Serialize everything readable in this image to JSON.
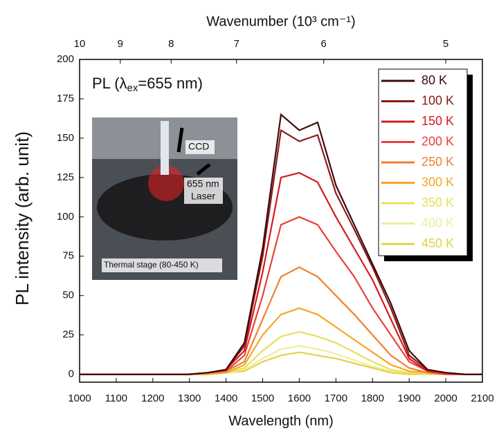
{
  "chart_data": {
    "type": "line",
    "x_label": "Wavelength (nm)",
    "y_label": "PL intensity (arb. unit)",
    "top_axis_label": "Wavenumber (10³ cm⁻¹)",
    "annotation": {
      "prefix": "PL (λ",
      "subscript": "ex",
      "suffix": "=655 nm)"
    },
    "inset": {
      "ccd": "CCD",
      "laser_line1": "655 nm",
      "laser_line2": "Laser",
      "stage": "Thermal stage (80-450 K)"
    },
    "xlim": [
      1000,
      2100
    ],
    "ylim": [
      -5,
      200
    ],
    "xticks": [
      1000,
      1100,
      1200,
      1300,
      1400,
      1500,
      1600,
      1700,
      1800,
      1900,
      2000,
      2100
    ],
    "yticks": [
      0,
      25,
      50,
      75,
      100,
      125,
      150,
      175,
      200
    ],
    "top_ticks": [
      10,
      9,
      8,
      7,
      6,
      5
    ],
    "x": [
      1000,
      1050,
      1100,
      1150,
      1200,
      1250,
      1300,
      1350,
      1400,
      1450,
      1500,
      1550,
      1600,
      1650,
      1700,
      1750,
      1800,
      1850,
      1900,
      1950,
      2000,
      2050,
      2100
    ],
    "series": [
      {
        "name": "80 K",
        "color": "#3d0a0a",
        "values": [
          0,
          0,
          0,
          0,
          0,
          0,
          0,
          1,
          3,
          20,
          80,
          165,
          155,
          160,
          120,
          95,
          70,
          45,
          15,
          3,
          1,
          0,
          0
        ]
      },
      {
        "name": "100 K",
        "color": "#8b1a1a",
        "values": [
          0,
          0,
          0,
          0,
          0,
          0,
          0,
          1,
          3,
          18,
          75,
          155,
          148,
          152,
          115,
          92,
          68,
          42,
          12,
          3,
          1,
          0,
          0
        ]
      },
      {
        "name": "150 K",
        "color": "#d7191c",
        "values": [
          0,
          0,
          0,
          0,
          0,
          0,
          0,
          1,
          3,
          15,
          65,
          125,
          128,
          122,
          100,
          80,
          60,
          35,
          10,
          2,
          1,
          0,
          0
        ]
      },
      {
        "name": "200 K",
        "color": "#e8403a",
        "values": [
          0,
          0,
          0,
          0,
          0,
          0,
          0,
          1,
          2,
          12,
          50,
          95,
          100,
          95,
          78,
          62,
          42,
          25,
          8,
          2,
          0,
          0,
          0
        ]
      },
      {
        "name": "250 K",
        "color": "#f07f2a",
        "values": [
          0,
          0,
          0,
          0,
          0,
          0,
          0,
          1,
          2,
          8,
          35,
          62,
          68,
          62,
          50,
          38,
          25,
          12,
          4,
          1,
          0,
          0,
          0
        ]
      },
      {
        "name": "300 K",
        "color": "#f5a623",
        "values": [
          0,
          0,
          0,
          0,
          0,
          0,
          0,
          0,
          1,
          6,
          25,
          38,
          42,
          38,
          30,
          22,
          14,
          6,
          2,
          1,
          0,
          0,
          0
        ]
      },
      {
        "name": "350 K",
        "color": "#e6e05a",
        "values": [
          0,
          0,
          0,
          0,
          0,
          0,
          0,
          0,
          1,
          4,
          15,
          24,
          27,
          24,
          20,
          14,
          8,
          3,
          1,
          0,
          0,
          0,
          0
        ]
      },
      {
        "name": "400 K",
        "color": "#f0ec9c",
        "values": [
          0,
          0,
          0,
          0,
          0,
          0,
          0,
          0,
          1,
          3,
          10,
          16,
          18,
          16,
          13,
          9,
          5,
          2,
          1,
          0,
          0,
          0,
          0
        ]
      },
      {
        "name": "450 K",
        "color": "#e2d146",
        "values": [
          0,
          0,
          0,
          0,
          0,
          0,
          0,
          0,
          1,
          2,
          8,
          12,
          14,
          12,
          10,
          7,
          4,
          1,
          0,
          0,
          0,
          0,
          0
        ]
      }
    ]
  }
}
